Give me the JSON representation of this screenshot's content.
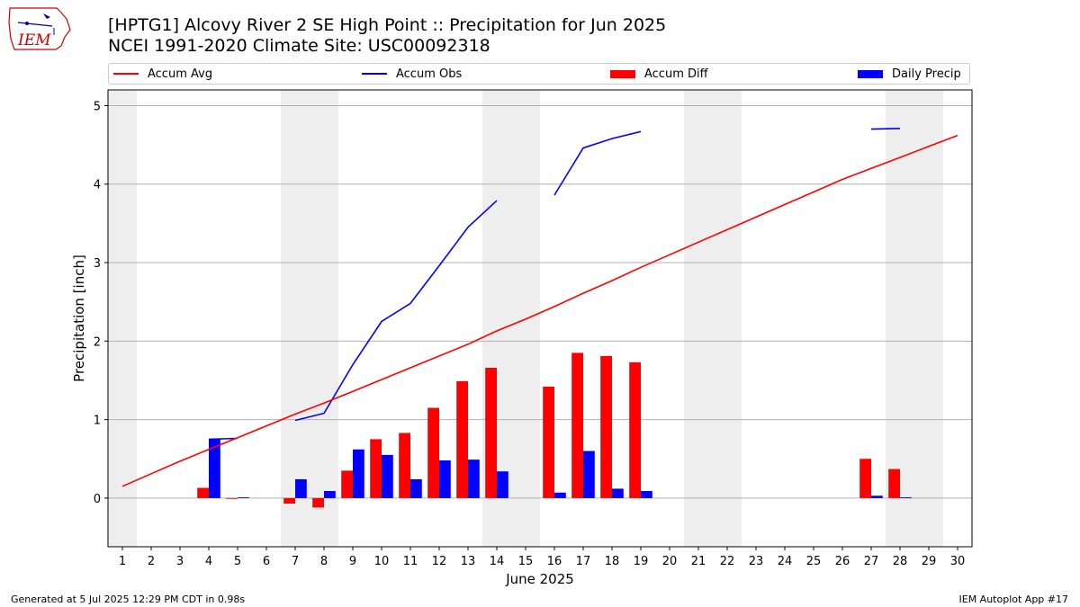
{
  "header": {
    "title_line1": "[HPTG1] Alcovy River 2 SE High Point :: Precipitation for Jun 2025",
    "title_line2": "NCEI 1991-2020 Climate Site: USC00092318"
  },
  "logo": {
    "text": "IEM",
    "icon": "iowa-state-outline-icon"
  },
  "footer": {
    "left": "Generated at 5 Jul 2025 12:29 PM CDT in 0.98s",
    "right": "IEM Autoplot App #17"
  },
  "legend": {
    "items": [
      {
        "label": "Accum Avg",
        "kind": "line",
        "color": "#ff0000"
      },
      {
        "label": "Accum Obs",
        "kind": "line",
        "color": "#0000ff"
      },
      {
        "label": "Accum Diff",
        "kind": "bar",
        "color": "#ff0000"
      },
      {
        "label": "Daily Precip",
        "kind": "bar",
        "color": "#0000ff"
      }
    ]
  },
  "chart_data": {
    "type": "bar",
    "xlabel": "June 2025",
    "ylabel": "Precipitation [inch]",
    "xlim": [
      0.5,
      30.5
    ],
    "ylim": [
      -0.62,
      5.2
    ],
    "yticks": [
      0,
      1,
      2,
      3,
      4,
      5
    ],
    "x": [
      1,
      2,
      3,
      4,
      5,
      6,
      7,
      8,
      9,
      10,
      11,
      12,
      13,
      14,
      15,
      16,
      17,
      18,
      19,
      20,
      21,
      22,
      23,
      24,
      25,
      26,
      27,
      28,
      29,
      30
    ],
    "weekend_days": [
      1,
      7,
      8,
      14,
      15,
      21,
      22,
      28,
      29
    ],
    "grid": "horizontal",
    "legend_position": "top",
    "series": [
      {
        "name": "Accum Avg",
        "type": "line",
        "color": "#ff0000",
        "values": [
          0.15,
          0.31,
          0.47,
          0.62,
          0.77,
          0.92,
          1.07,
          1.21,
          1.36,
          1.51,
          1.66,
          1.81,
          1.96,
          2.13,
          2.28,
          2.44,
          2.61,
          2.77,
          2.94,
          3.1,
          3.26,
          3.42,
          3.58,
          3.74,
          3.9,
          4.06,
          4.2,
          4.34,
          4.48,
          4.62
        ]
      },
      {
        "name": "Accum Obs",
        "type": "line",
        "color": "#0000ff",
        "values": [
          null,
          null,
          null,
          0.75,
          0.76,
          null,
          0.99,
          1.08,
          1.7,
          2.25,
          2.48,
          2.96,
          3.45,
          3.79,
          null,
          3.86,
          4.46,
          4.58,
          4.67,
          null,
          null,
          null,
          null,
          null,
          null,
          null,
          4.7,
          4.71,
          null,
          null
        ]
      },
      {
        "name": "Accum Diff",
        "type": "bar",
        "color": "#ff0000",
        "values": [
          null,
          null,
          null,
          0.13,
          -0.01,
          null,
          -0.07,
          -0.12,
          0.35,
          0.75,
          0.83,
          1.15,
          1.49,
          1.66,
          null,
          1.42,
          1.85,
          1.81,
          1.73,
          null,
          null,
          null,
          null,
          null,
          null,
          null,
          0.5,
          0.37,
          null,
          null
        ]
      },
      {
        "name": "Daily Precip",
        "type": "bar",
        "color": "#0000ff",
        "values": [
          null,
          null,
          null,
          0.75,
          0.01,
          null,
          0.24,
          0.09,
          0.62,
          0.55,
          0.24,
          0.48,
          0.49,
          0.34,
          null,
          0.07,
          0.6,
          0.12,
          0.09,
          null,
          null,
          null,
          null,
          null,
          null,
          null,
          0.03,
          0.01,
          null,
          null
        ]
      }
    ]
  }
}
